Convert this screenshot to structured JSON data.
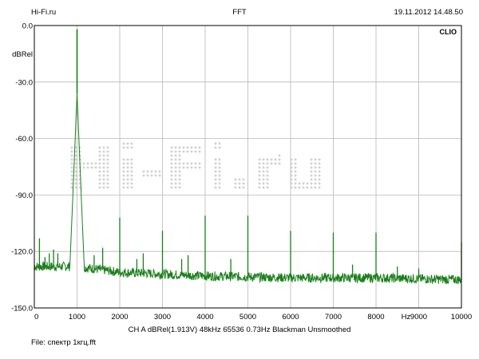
{
  "header": {
    "left": "Hi-Fi.ru",
    "center": "FFT",
    "right": "19.11.2012 14.48.50"
  },
  "footer": {
    "settings": "CH A   dBRel(1.913V)   48kHz   65536   0.73Hz   Blackman   Unsmoothed",
    "file": "File: спектр 1кгц.fft"
  },
  "plot": {
    "brand": "CLIO",
    "y_unit": "dBRel",
    "x_unit": "Hz",
    "watermark": "Hi-Fi.ru"
  },
  "colors": {
    "trace": "#1a7f1a",
    "grid": "#b8b8b8",
    "frame": "#000000",
    "watermark": "#d3d3d3"
  },
  "chart_data": {
    "type": "line",
    "title": "FFT",
    "xlabel": "Hz",
    "ylabel": "dBRel",
    "xlim": [
      0,
      10000
    ],
    "ylim": [
      -150,
      0
    ],
    "x_ticks": [
      0,
      1000,
      2000,
      3000,
      4000,
      5000,
      6000,
      7000,
      8000,
      9000,
      10000
    ],
    "y_ticks": [
      0,
      -30,
      -60,
      -90,
      -120,
      -150
    ],
    "y_tick_labels": [
      "0.0",
      "-30.0",
      "-60.0",
      "-90.0",
      "-120.0",
      "-150.0"
    ],
    "grid": true,
    "noise_floor": [
      [
        0,
        -128
      ],
      [
        1000,
        -128
      ],
      [
        2000,
        -131
      ],
      [
        4000,
        -133
      ],
      [
        6000,
        -134
      ],
      [
        8000,
        -134
      ],
      [
        10000,
        -135
      ]
    ],
    "peaks": [
      {
        "x": 1000,
        "y": -2
      },
      {
        "x": 2000,
        "y": -102
      },
      {
        "x": 3000,
        "y": -109
      },
      {
        "x": 4000,
        "y": -101
      },
      {
        "x": 5000,
        "y": -101
      },
      {
        "x": 6000,
        "y": -109
      },
      {
        "x": 7000,
        "y": -110
      },
      {
        "x": 8000,
        "y": -110
      },
      {
        "x": 2400,
        "y": -124
      },
      {
        "x": 2550,
        "y": -121
      },
      {
        "x": 3450,
        "y": -124
      },
      {
        "x": 3600,
        "y": -122
      },
      {
        "x": 1400,
        "y": -122
      },
      {
        "x": 1600,
        "y": -118
      },
      {
        "x": 4600,
        "y": -124
      },
      {
        "x": 7450,
        "y": -127
      },
      {
        "x": 8500,
        "y": -128
      },
      {
        "x": 9000,
        "y": -129
      },
      {
        "x": 120,
        "y": -113
      },
      {
        "x": 250,
        "y": -123
      },
      {
        "x": 350,
        "y": -121
      },
      {
        "x": 450,
        "y": -119
      },
      {
        "x": 550,
        "y": -121
      },
      {
        "x": 10000,
        "y": -115
      }
    ]
  }
}
